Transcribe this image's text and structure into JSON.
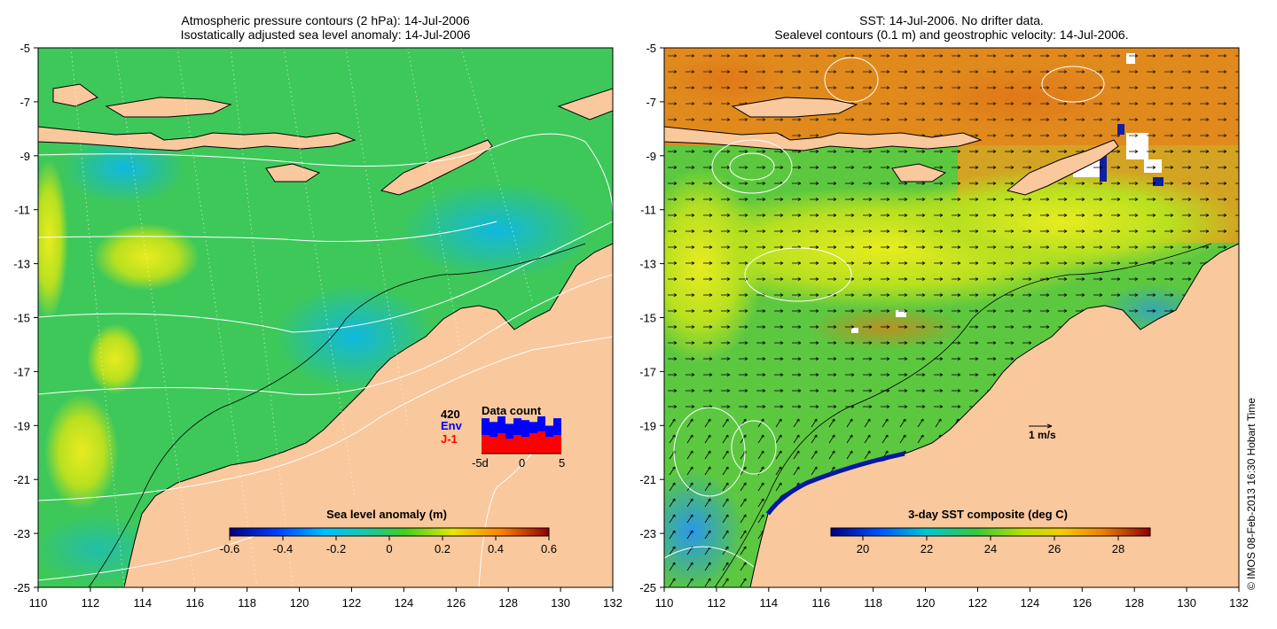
{
  "left_panel": {
    "title_line1": "Atmospheric pressure contours (2 hPa): 14-Jul-2006",
    "title_line2": "Isostatically adjusted sea level anomaly: 14-Jul-2006",
    "colorbar": {
      "label": "Sea level anomaly (m)",
      "ticks": [
        "-0.6",
        "-0.4",
        "-0.2",
        "0",
        "0.2",
        "0.4",
        "0.6"
      ],
      "range": [
        -0.6,
        0.6
      ]
    },
    "data_count": {
      "title": "Data count",
      "total": "420",
      "env_label": "Env",
      "j1_label": "J-1",
      "x_ticks": [
        "-5d",
        "0",
        "5"
      ],
      "env_fraction": [
        0.95,
        0.85,
        1.0,
        0.8,
        0.95,
        0.9,
        0.85,
        1.0,
        0.75,
        0.95
      ],
      "j1_fraction": [
        0.5,
        0.45,
        0.55,
        0.4,
        0.5,
        0.45,
        0.55,
        0.6,
        0.45,
        0.5
      ]
    }
  },
  "right_panel": {
    "title_line1": "SST: 14-Jul-2006. No drifter data.",
    "title_line2": "Sealevel contours (0.1 m) and geostrophic velocity: 14-Jul-2006.",
    "colorbar": {
      "label": "3-day SST composite (deg C)",
      "ticks": [
        "20",
        "22",
        "24",
        "26",
        "28"
      ],
      "range": [
        19,
        29
      ]
    },
    "velocity_scale_label": "1 m/s"
  },
  "axes": {
    "lon_ticks": [
      "110",
      "112",
      "114",
      "116",
      "118",
      "120",
      "122",
      "124",
      "126",
      "128",
      "130",
      "132"
    ],
    "lat_ticks": [
      "-5",
      "-7",
      "-9",
      "-11",
      "-13",
      "-15",
      "-17",
      "-19",
      "-21",
      "-23",
      "-25"
    ]
  },
  "credit": "© IMOS 08-Feb-2013 16:30 Hobart Time",
  "colors": {
    "land": "#f9c89c",
    "ocean_green": "#3ec85a",
    "ocean_cyan": "#22c8a8",
    "yellow": "#d8e42a",
    "sst_orange": "#e08a1e",
    "env_blue": "#0000ff",
    "j1_red": "#ff0000"
  }
}
